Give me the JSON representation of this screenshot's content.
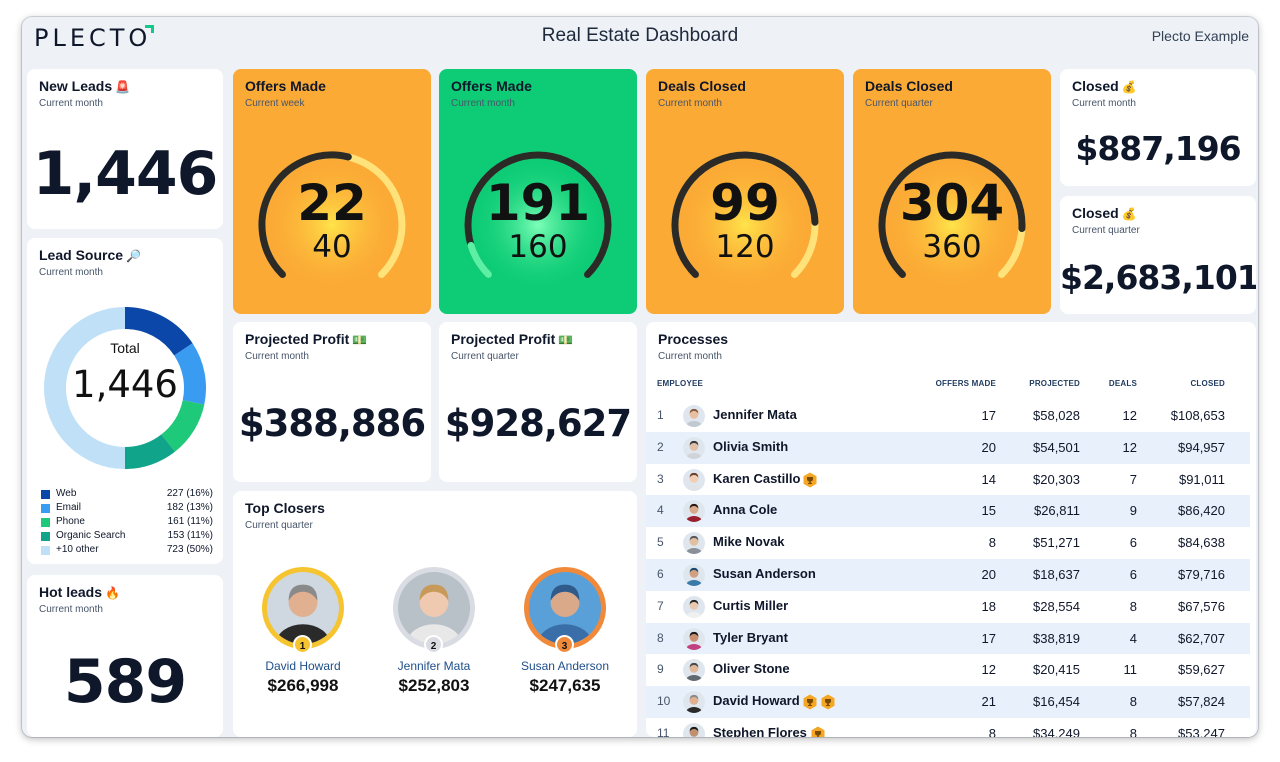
{
  "header": {
    "logo": "PLECTO",
    "title": "Real Estate Dashboard",
    "account": "Plecto Example"
  },
  "colors": {
    "orange": "#fbaa35",
    "green": "#0dcc75",
    "brand_accent": "#13c98a",
    "web": "#0a47a8",
    "email": "#3a9cf0",
    "phone": "#1ec97a",
    "organic": "#10a48a",
    "other": "#bfe0f7"
  },
  "new_leads": {
    "title": "New Leads",
    "icon": "alarm-light-icon",
    "emoji": "🚨",
    "subtitle": "Current month",
    "value": "1,446"
  },
  "lead_source": {
    "title": "Lead Source",
    "icon": "magnifier-icon",
    "emoji": "🔎",
    "subtitle": "Current month",
    "donut_label": "Total",
    "donut_value": "1,446",
    "legend": [
      {
        "label": "Web",
        "value": "227 (16%)",
        "color": "#0a47a8"
      },
      {
        "label": "Email",
        "value": "182 (13%)",
        "color": "#3a9cf0"
      },
      {
        "label": "Phone",
        "value": "161 (11%)",
        "color": "#1ec97a"
      },
      {
        "label": "Organic Search",
        "value": "153 (11%)",
        "color": "#10a48a"
      },
      {
        "label": "+10 other",
        "value": "723 (50%)",
        "color": "#bfe0f7"
      }
    ]
  },
  "hot_leads": {
    "title": "Hot leads",
    "icon": "fire-icon",
    "emoji": "🔥",
    "subtitle": "Current month",
    "value": "589"
  },
  "gauges": [
    {
      "title": "Offers Made",
      "subtitle": "Current week",
      "value": "22",
      "target": "40",
      "fraction": 0.55,
      "bg": "orange"
    },
    {
      "title": "Offers Made",
      "subtitle": "Current month",
      "value": "191",
      "target": "160",
      "fraction": 1.0,
      "bg": "green"
    },
    {
      "title": "Deals Closed",
      "subtitle": "Current month",
      "value": "99",
      "target": "120",
      "fraction": 0.825,
      "bg": "orange"
    },
    {
      "title": "Deals Closed",
      "subtitle": "Current quarter",
      "value": "304",
      "target": "360",
      "fraction": 0.844,
      "bg": "orange"
    }
  ],
  "closed_month": {
    "title": "Closed",
    "icon": "money-bag-icon",
    "emoji": "💰",
    "subtitle": "Current month",
    "value": "$887,196"
  },
  "closed_quarter": {
    "title": "Closed",
    "icon": "money-bag-icon",
    "emoji": "💰",
    "subtitle": "Current quarter",
    "value": "$2,683,101"
  },
  "profit_month": {
    "title": "Projected Profit",
    "icon": "cash-icon",
    "emoji": "💵",
    "subtitle": "Current month",
    "value": "$388,886"
  },
  "profit_quarter": {
    "title": "Projected Profit",
    "icon": "cash-icon",
    "emoji": "💵",
    "subtitle": "Current quarter",
    "value": "$928,627"
  },
  "top_closers": {
    "title": "Top Closers",
    "subtitle": "Current quarter",
    "people": [
      {
        "rank": "1",
        "name": "David Howard",
        "amount": "$266,998",
        "ring": "#f6c431"
      },
      {
        "rank": "2",
        "name": "Jennifer Mata",
        "amount": "$252,803",
        "ring": "#d9dde3"
      },
      {
        "rank": "3",
        "name": "Susan Anderson",
        "amount": "$247,635",
        "ring": "#f08a3a"
      }
    ]
  },
  "processes": {
    "title": "Processes",
    "subtitle": "Current month",
    "columns": {
      "employee": "EMPLOYEE",
      "offers": "OFFERS MADE",
      "projected": "PROJECTED",
      "deals": "DEALS",
      "closed": "CLOSED"
    },
    "rows": [
      {
        "rank": "1",
        "name": "Jennifer Mata",
        "offers": "17",
        "projected": "$58,028",
        "deals": "12",
        "closed": "$108,653",
        "badges": 0
      },
      {
        "rank": "2",
        "name": "Olivia Smith",
        "offers": "20",
        "projected": "$54,501",
        "deals": "12",
        "closed": "$94,957",
        "badges": 0
      },
      {
        "rank": "3",
        "name": "Karen Castillo",
        "offers": "14",
        "projected": "$20,303",
        "deals": "7",
        "closed": "$91,011",
        "badges": 1
      },
      {
        "rank": "4",
        "name": "Anna Cole",
        "offers": "15",
        "projected": "$26,811",
        "deals": "9",
        "closed": "$86,420",
        "badges": 0
      },
      {
        "rank": "5",
        "name": "Mike Novak",
        "offers": "8",
        "projected": "$51,271",
        "deals": "6",
        "closed": "$84,638",
        "badges": 0
      },
      {
        "rank": "6",
        "name": "Susan Anderson",
        "offers": "20",
        "projected": "$18,637",
        "deals": "6",
        "closed": "$79,716",
        "badges": 0
      },
      {
        "rank": "7",
        "name": "Curtis Miller",
        "offers": "18",
        "projected": "$28,554",
        "deals": "8",
        "closed": "$67,576",
        "badges": 0
      },
      {
        "rank": "8",
        "name": "Tyler Bryant",
        "offers": "17",
        "projected": "$38,819",
        "deals": "4",
        "closed": "$62,707",
        "badges": 0
      },
      {
        "rank": "9",
        "name": "Oliver Stone",
        "offers": "12",
        "projected": "$20,415",
        "deals": "11",
        "closed": "$59,627",
        "badges": 0
      },
      {
        "rank": "10",
        "name": "David Howard",
        "offers": "21",
        "projected": "$16,454",
        "deals": "8",
        "closed": "$57,824",
        "badges": 2
      },
      {
        "rank": "11",
        "name": "Stephen Flores",
        "offers": "8",
        "projected": "$34,249",
        "deals": "8",
        "closed": "$53,247",
        "badges": 1
      }
    ]
  }
}
